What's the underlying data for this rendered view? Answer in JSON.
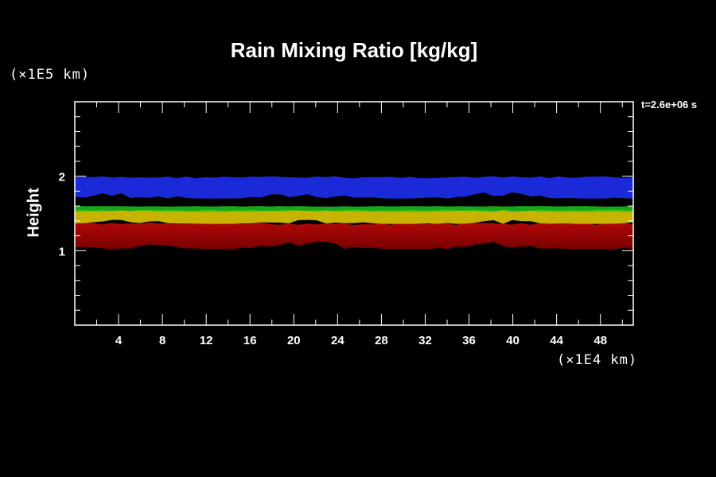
{
  "chart_data": {
    "type": "heatmap",
    "title": "Rain Mixing Ratio [kg/kg]",
    "xlabel": "",
    "ylabel": "Height",
    "x_unit": "(×1E4 km)",
    "y_unit": "(×1E5 km)",
    "annotation": "t=2.6e+06 s",
    "xlim": [
      0,
      51
    ],
    "ylim": [
      0,
      3
    ],
    "x_ticks": [
      4,
      8,
      12,
      16,
      20,
      24,
      28,
      32,
      36,
      40,
      44,
      48
    ],
    "y_ticks": [
      1,
      2
    ],
    "grid": false,
    "bands": [
      {
        "name": "blue",
        "color": "#1a2ad8",
        "y_bottom": 1.7,
        "y_top": 2.0
      },
      {
        "name": "red",
        "color": "#b00808",
        "y_bottom": 1.02,
        "y_top": 1.38
      },
      {
        "name": "yellow",
        "color": "#c8b400",
        "y_bottom": 1.36,
        "y_top": 1.55
      },
      {
        "name": "green",
        "color": "#20d020",
        "y_bottom": 1.52,
        "y_top": 1.6
      }
    ]
  }
}
